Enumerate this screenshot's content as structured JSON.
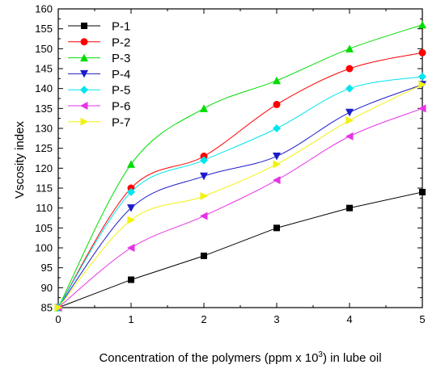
{
  "chart_data": {
    "type": "line",
    "xlabel_prefix": "Concentration of the polymers (ppm x 10",
    "xlabel_superscript": "3",
    "xlabel_suffix": ") in lube oil",
    "ylabel": "Vscosity index",
    "x_ticks": [
      "0",
      "1",
      "2",
      "3",
      "4",
      "5"
    ],
    "y_ticks": [
      "85",
      "90",
      "95",
      "100",
      "105",
      "110",
      "115",
      "120",
      "125",
      "130",
      "135",
      "140",
      "145",
      "150",
      "155",
      "160"
    ],
    "xlim": [
      0,
      5
    ],
    "ylim": [
      85,
      160
    ],
    "x": [
      0,
      1,
      2,
      3,
      4,
      5
    ],
    "legend_position": "top-left",
    "grid": false,
    "series": [
      {
        "name": "P-1",
        "marker": "square",
        "color": "#000000",
        "values": [
          85,
          92,
          98,
          105,
          110,
          114
        ]
      },
      {
        "name": "P-2",
        "marker": "circle",
        "color": "#ff0000",
        "values": [
          85,
          115,
          123,
          136,
          145,
          149
        ]
      },
      {
        "name": "P-3",
        "marker": "triangle-up",
        "color": "#00dd00",
        "values": [
          85,
          121,
          135,
          142,
          150,
          156
        ]
      },
      {
        "name": "P-4",
        "marker": "triangle-down",
        "color": "#1c1ccc",
        "values": [
          85,
          110,
          118,
          123,
          134,
          141
        ]
      },
      {
        "name": "P-5",
        "marker": "diamond",
        "color": "#00e5ee",
        "values": [
          85,
          114,
          122,
          130,
          140,
          143
        ]
      },
      {
        "name": "P-6",
        "marker": "triangle-left",
        "color": "#e633e6",
        "values": [
          85,
          100,
          108,
          117,
          128,
          135
        ]
      },
      {
        "name": "P-7",
        "marker": "triangle-right",
        "color": "#f2f20f",
        "values": [
          85,
          107,
          113,
          121,
          132,
          141
        ]
      }
    ]
  }
}
